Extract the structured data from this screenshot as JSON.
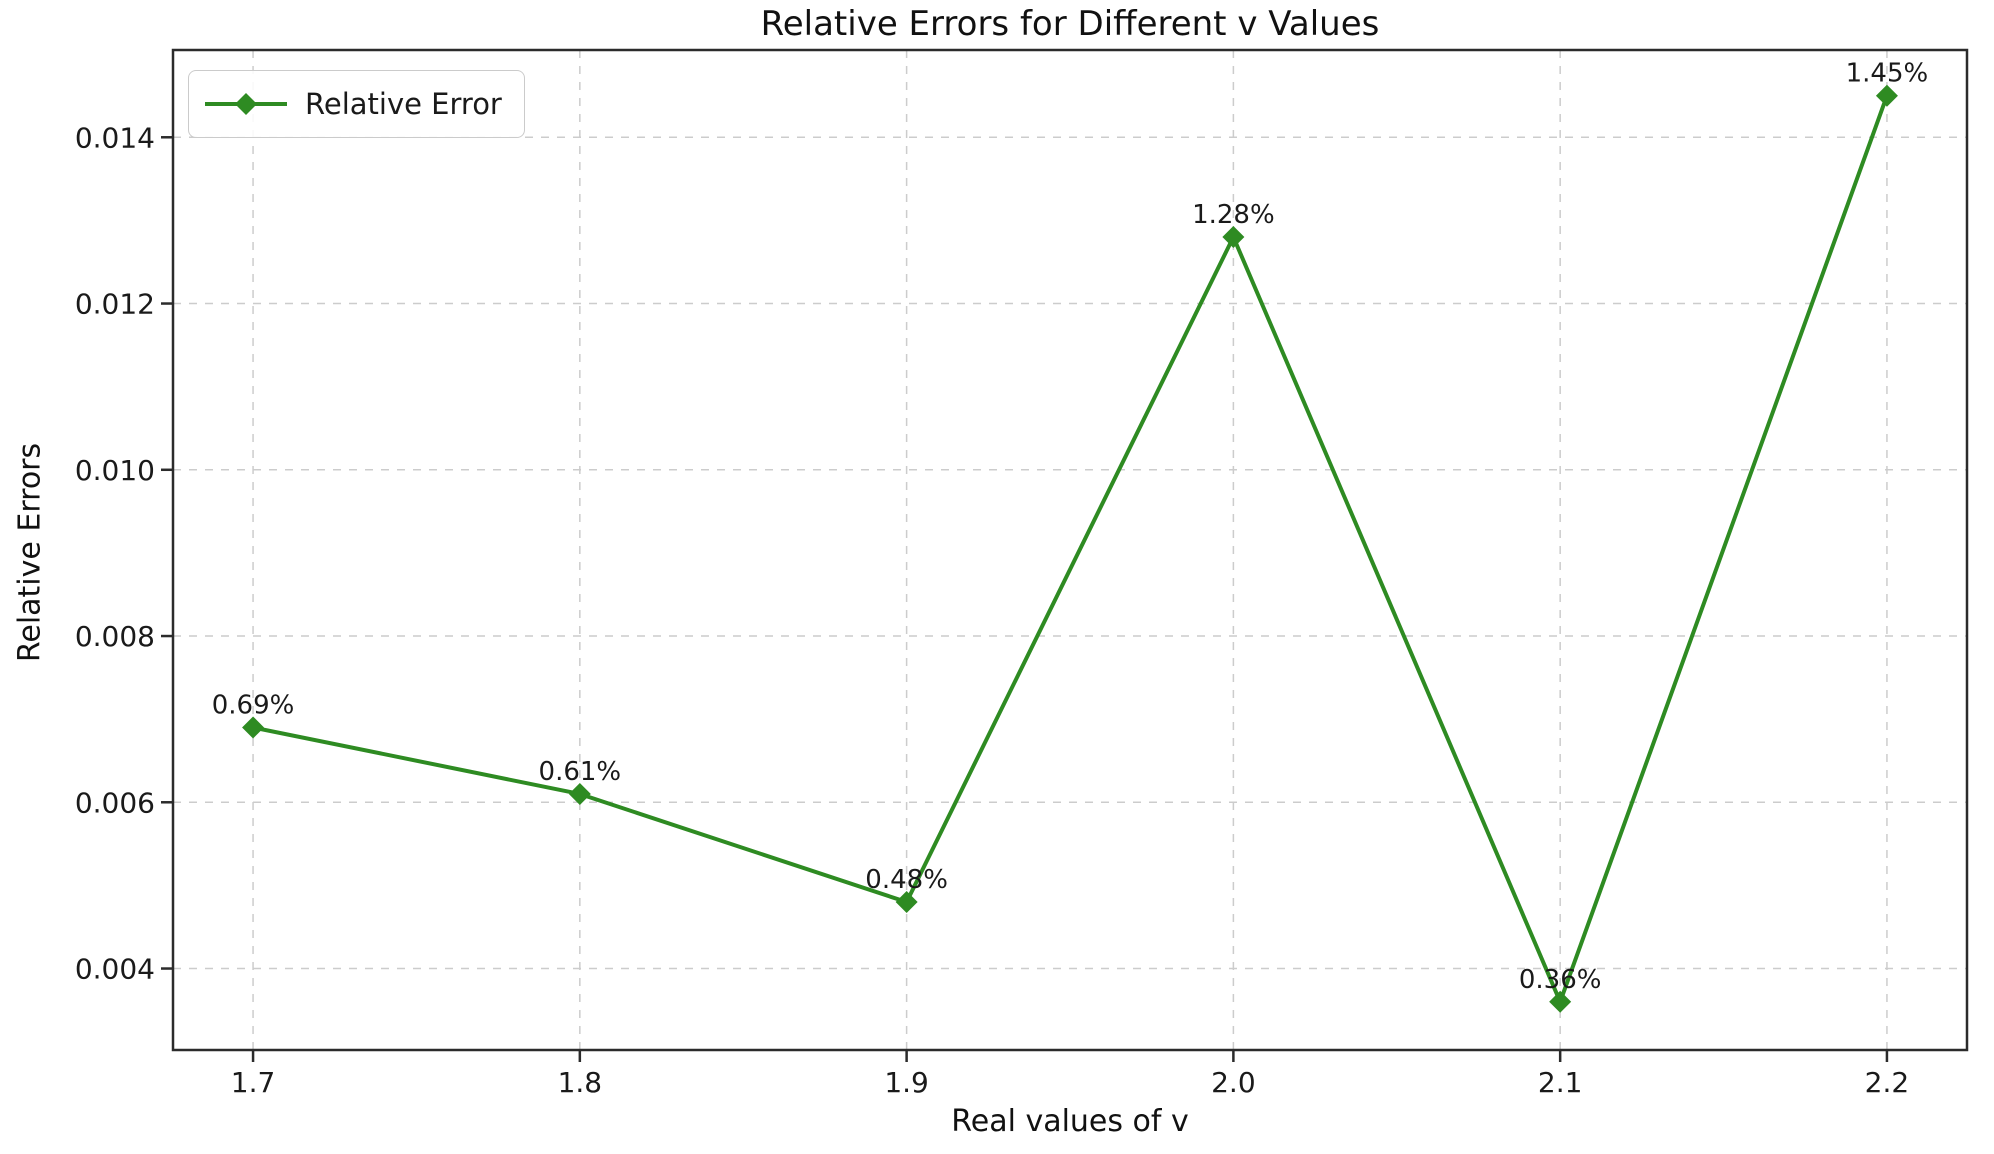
{
  "chart_data": {
    "type": "line",
    "title": "Relative Errors for Different v Values",
    "xlabel": "Real values of v",
    "ylabel": "Relative Errors",
    "legend_label": "Relative Error",
    "legend_position": "upper left",
    "x": [
      1.7,
      1.8,
      1.9,
      2.0,
      2.1,
      2.2
    ],
    "series": [
      {
        "name": "Relative Error",
        "values": [
          0.0069,
          0.0061,
          0.0048,
          0.0128,
          0.0036,
          0.0145
        ],
        "point_labels": [
          "0.69%",
          "0.61%",
          "0.48%",
          "1.28%",
          "0.36%",
          "1.45%"
        ],
        "marker": "diamond",
        "line_style": "solid"
      }
    ],
    "x_ticks": [
      1.7,
      1.8,
      1.9,
      2.0,
      2.1,
      2.2
    ],
    "x_tick_labels": [
      "1.7",
      "1.8",
      "1.9",
      "2.0",
      "2.1",
      "2.2"
    ],
    "y_ticks": [
      0.004,
      0.006,
      0.008,
      0.01,
      0.012,
      0.014
    ],
    "y_tick_labels": [
      "0.004",
      "0.006",
      "0.008",
      "0.010",
      "0.012",
      "0.014"
    ],
    "xlim": [
      1.6755,
      2.2245
    ],
    "ylim": [
      0.00302,
      0.01505
    ],
    "grid": true,
    "grid_style": "dashed",
    "colors": {
      "line": "#2e8b22",
      "marker": "#2e8b22",
      "grid": "#cccccc",
      "spine": "#2b2b2b",
      "text": "#1a1a1a"
    }
  }
}
